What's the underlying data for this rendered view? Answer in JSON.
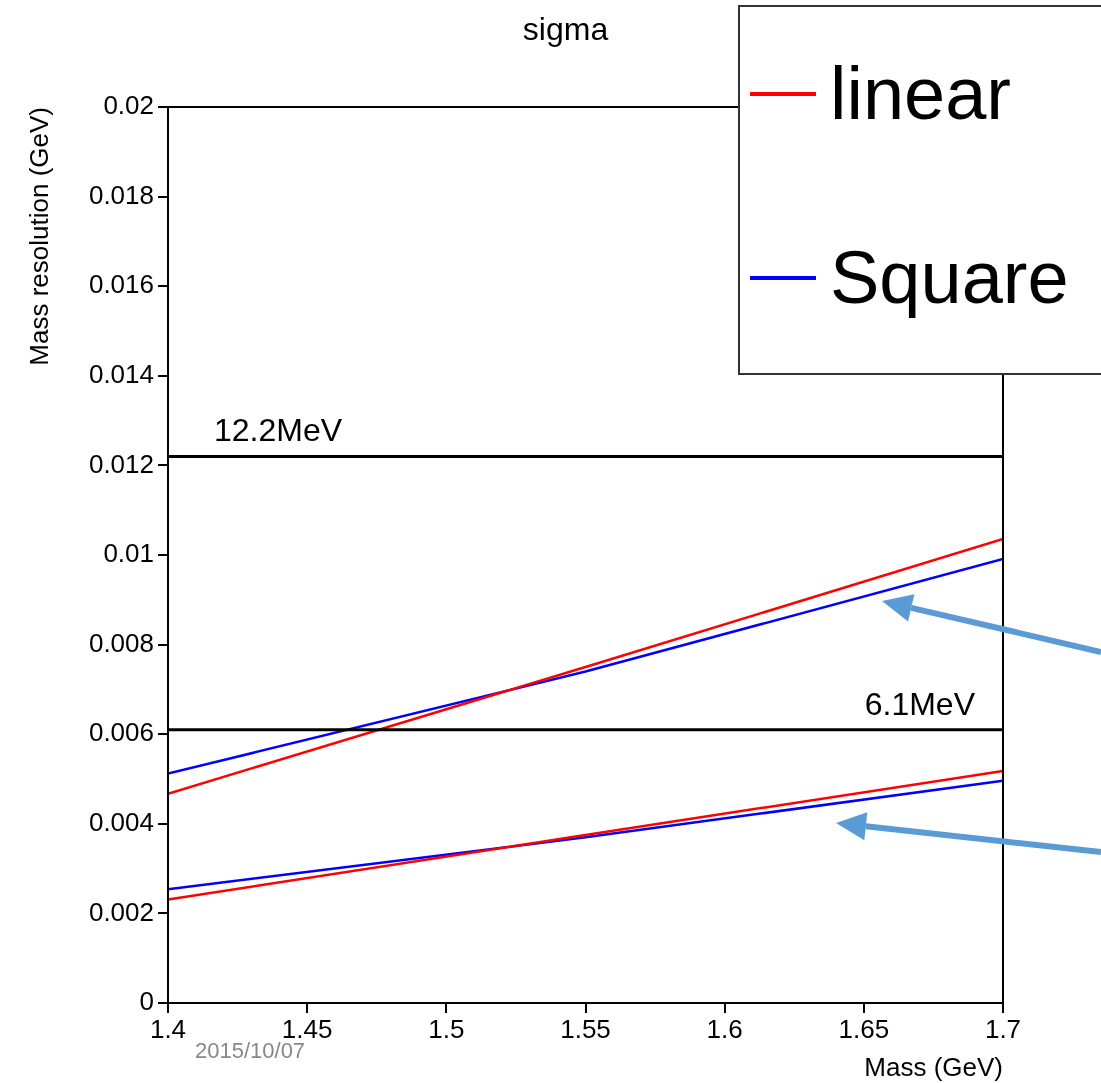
{
  "chart_data": {
    "type": "line",
    "title": "sigma",
    "xlabel": "Mass (GeV)",
    "ylabel": "Mass resolution (GeV)",
    "xlim": [
      1.4,
      1.7
    ],
    "xticks": [
      1.4,
      1.45,
      1.5,
      1.55,
      1.6,
      1.65,
      1.7
    ],
    "ylim": [
      0,
      0.02
    ],
    "yticks": [
      0,
      0.002,
      0.004,
      0.006,
      0.008,
      0.01,
      0.012,
      0.014,
      0.016,
      0.018,
      0.02
    ],
    "series": [
      {
        "name": "linear",
        "color": "#ff0000",
        "x": [
          1.4,
          1.55,
          1.7
        ],
        "values": [
          0.00467,
          0.0075,
          0.01036
        ]
      },
      {
        "name": "Square",
        "color": "#0000ff",
        "x": [
          1.4,
          1.55,
          1.7
        ],
        "values": [
          0.00512,
          0.0074,
          0.00991
        ]
      },
      {
        "color": "#ff0000",
        "x": [
          1.4,
          1.55,
          1.7
        ],
        "values": [
          0.00231,
          0.00375,
          0.00518
        ]
      },
      {
        "color": "#0000ff",
        "x": [
          1.4,
          1.55,
          1.7
        ],
        "values": [
          0.00254,
          0.0037,
          0.00496
        ]
      }
    ],
    "ref_lines": [
      {
        "axis": "y",
        "value": 0.0122,
        "label": "12.2MeV",
        "color": "#000000"
      },
      {
        "axis": "y",
        "value": 0.0061,
        "label": "6.1MeV",
        "color": "#000000"
      }
    ],
    "annotations": [
      "2015/10/07"
    ],
    "legend": "top right",
    "grid": false,
    "marker": "none",
    "line_style": "solid"
  }
}
